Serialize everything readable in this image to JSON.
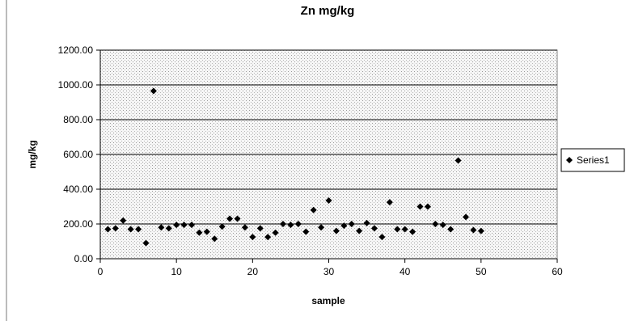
{
  "chart_data": {
    "type": "scatter",
    "title": "Zn mg/kg",
    "xlabel": "sample",
    "ylabel": "mg/kg",
    "xlim": [
      0,
      60
    ],
    "ylim": [
      0,
      1200
    ],
    "xticks": [
      "0",
      "10",
      "20",
      "30",
      "40",
      "50",
      "60"
    ],
    "yticks": [
      "0.00",
      "200.00",
      "400.00",
      "600.00",
      "800.00",
      "1000.00",
      "1200.00"
    ],
    "grid": "horizontal",
    "legend": "right",
    "series": [
      {
        "name": "Series1",
        "color": "#000000",
        "marker": "diamond",
        "x": [
          1,
          2,
          3,
          4,
          5,
          6,
          7,
          8,
          9,
          10,
          11,
          12,
          13,
          14,
          15,
          16,
          17,
          18,
          19,
          20,
          21,
          22,
          23,
          24,
          25,
          26,
          27,
          28,
          29,
          30,
          31,
          32,
          33,
          34,
          35,
          36,
          37,
          38,
          39,
          40,
          41,
          42,
          43,
          44,
          45,
          46,
          47,
          48,
          49,
          50
        ],
        "y": [
          170,
          175,
          220,
          170,
          170,
          90,
          965,
          180,
          175,
          195,
          195,
          195,
          150,
          155,
          115,
          185,
          230,
          230,
          180,
          125,
          175,
          125,
          150,
          200,
          195,
          200,
          155,
          280,
          180,
          335,
          160,
          190,
          200,
          160,
          205,
          175,
          125,
          325,
          170,
          170,
          155,
          300,
          300,
          200,
          195,
          170,
          565,
          240,
          165,
          160
        ]
      }
    ]
  },
  "colors": {
    "plot_background": "#ececec",
    "gridline": "#000000",
    "marker": "#000000"
  }
}
